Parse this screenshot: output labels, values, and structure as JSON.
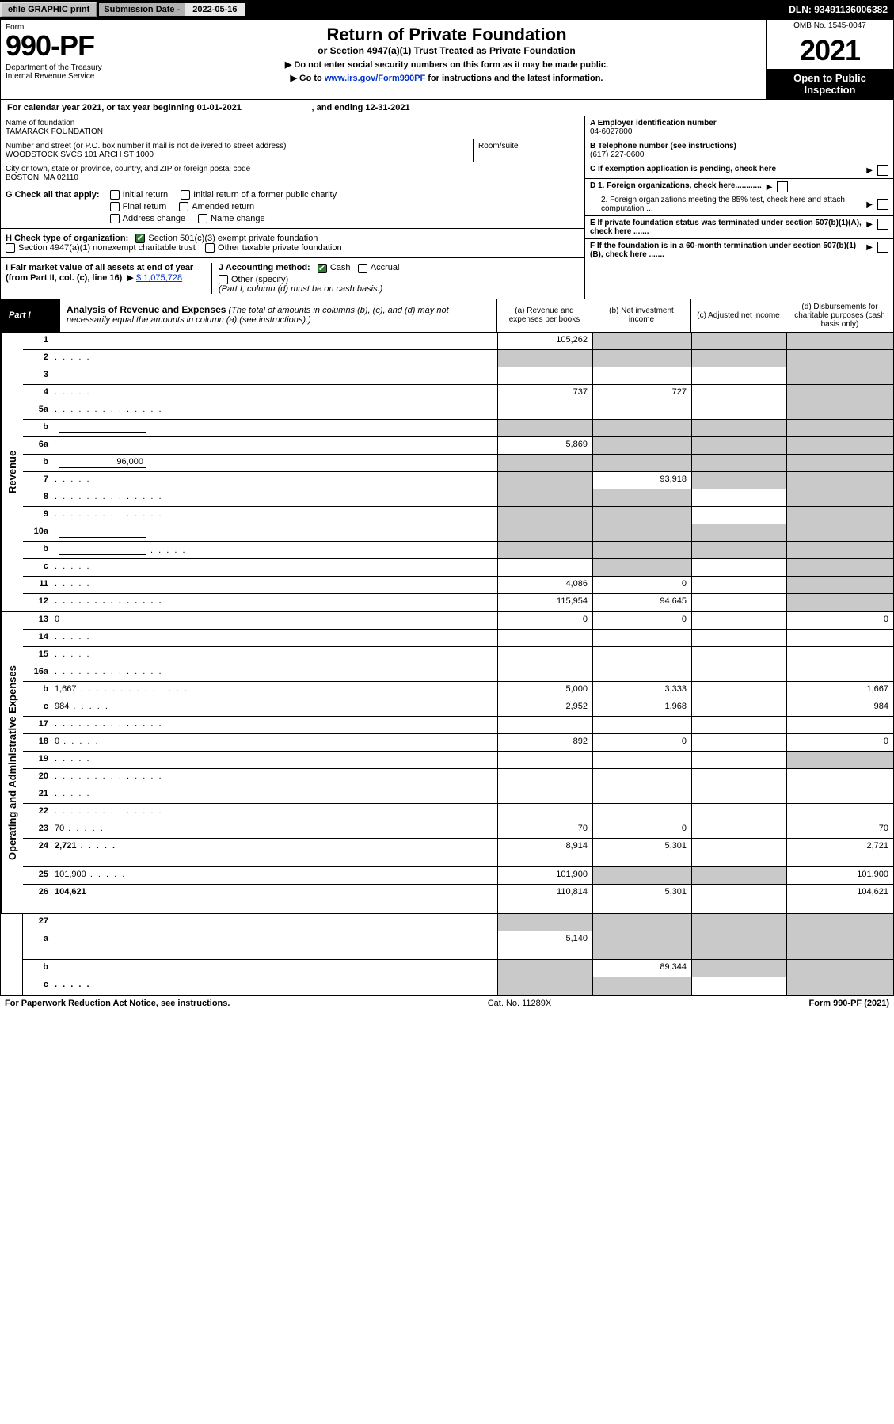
{
  "topbar": {
    "efile_btn": "efile GRAPHIC print",
    "sub_label": "Submission Date - ",
    "sub_date": "2022-05-16",
    "dln": "DLN: 93491136006382"
  },
  "header": {
    "form_word": "Form",
    "form_number": "990-PF",
    "dept": "Department of the Treasury\nInternal Revenue Service",
    "title": "Return of Private Foundation",
    "subtitle": "or Section 4947(a)(1) Trust Treated as Private Foundation",
    "instr1": "▶ Do not enter social security numbers on this form as it may be made public.",
    "instr2_pre": "▶ Go to ",
    "instr2_link": "www.irs.gov/Form990PF",
    "instr2_post": " for instructions and the latest information.",
    "omb": "OMB No. 1545-0047",
    "year": "2021",
    "open": "Open to Public Inspection"
  },
  "cal_year_line": "For calendar year 2021, or tax year beginning 01-01-2021                             , and ending 12-31-2021",
  "foundation": {
    "name_label": "Name of foundation",
    "name": "TAMARACK FOUNDATION",
    "addr_label": "Number and street (or P.O. box number if mail is not delivered to street address)",
    "addr": "WOODSTOCK SVCS 101 ARCH ST 1000",
    "room_label": "Room/suite",
    "city_label": "City or town, state or province, country, and ZIP or foreign postal code",
    "city": "BOSTON, MA  02110",
    "ein_label": "A Employer identification number",
    "ein": "04-6027800",
    "phone_label": "B Telephone number (see instructions)",
    "phone": "(617) 227-0600",
    "c_label": "C If exemption application is pending, check here",
    "d1": "D 1. Foreign organizations, check here............",
    "d2": "2. Foreign organizations meeting the 85% test, check here and attach computation ...",
    "e_label": "E  If private foundation status was terminated under section 507(b)(1)(A), check here .......",
    "f_label": "F  If the foundation is in a 60-month termination under section 507(b)(1)(B), check here .......",
    "g_label": "G Check all that apply:",
    "g_opts": {
      "initial": "Initial return",
      "initial_former": "Initial return of a former public charity",
      "final": "Final return",
      "amended": "Amended return",
      "addr_change": "Address change",
      "name_change": "Name change"
    },
    "h_label": "H Check type of organization:",
    "h_501c3": "Section 501(c)(3) exempt private foundation",
    "h_4947": "Section 4947(a)(1) nonexempt charitable trust",
    "h_other": "Other taxable private foundation",
    "i_label": "I Fair market value of all assets at end of year (from Part II, col. (c), line 16)",
    "i_value": "$  1,075,728",
    "j_label": "J Accounting method:",
    "j_cash": "Cash",
    "j_accrual": "Accrual",
    "j_other": "Other (specify)",
    "j_note": "(Part I, column (d) must be on cash basis.)"
  },
  "part1": {
    "label": "Part I",
    "title": "Analysis of Revenue and Expenses",
    "title_note": "(The total of amounts in columns (b), (c), and (d) may not necessarily equal the amounts in column (a) (see instructions).)",
    "col_a": "(a)   Revenue and expenses per books",
    "col_b": "(b)   Net investment income",
    "col_c": "(c)   Adjusted net income",
    "col_d": "(d)  Disbursements for charitable purposes (cash basis only)"
  },
  "sections": {
    "revenue": "Revenue",
    "expenses": "Operating and Administrative Expenses"
  },
  "rows": {
    "r1": {
      "n": "1",
      "d": "",
      "a": "105,262",
      "b": "",
      "c": "",
      "shade": [
        "b",
        "c",
        "d"
      ]
    },
    "r2": {
      "n": "2",
      "d": "",
      "a": "",
      "b": "",
      "c": "",
      "shade": [
        "a",
        "b",
        "c",
        "d"
      ],
      "dotsShort": true
    },
    "r3": {
      "n": "3",
      "d": "",
      "a": "",
      "b": "",
      "c": "",
      "shade": [
        "d"
      ]
    },
    "r4": {
      "n": "4",
      "d": "",
      "a": "737",
      "b": "727",
      "c": "",
      "shade": [
        "d"
      ],
      "dotsShort": true
    },
    "r5a": {
      "n": "5a",
      "d": "",
      "a": "",
      "b": "",
      "c": "",
      "shade": [
        "d"
      ],
      "dots": true
    },
    "r5b": {
      "n": "b",
      "d": "",
      "a": "",
      "b": "",
      "c": "",
      "shade": [
        "a",
        "b",
        "c",
        "d"
      ],
      "inline_box": true
    },
    "r6a": {
      "n": "6a",
      "d": "",
      "a": "5,869",
      "b": "",
      "c": "",
      "shade": [
        "b",
        "c",
        "d"
      ]
    },
    "r6b": {
      "n": "b",
      "d": "",
      "a": "",
      "b": "",
      "c": "",
      "shade": [
        "a",
        "b",
        "c",
        "d"
      ],
      "inline_val": "96,000"
    },
    "r7": {
      "n": "7",
      "d": "",
      "a": "",
      "b": "93,918",
      "c": "",
      "shade": [
        "a",
        "c",
        "d"
      ],
      "dotsShort": true
    },
    "r8": {
      "n": "8",
      "d": "",
      "a": "",
      "b": "",
      "c": "",
      "shade": [
        "a",
        "b",
        "d"
      ],
      "dots": true
    },
    "r9": {
      "n": "9",
      "d": "",
      "a": "",
      "b": "",
      "c": "",
      "shade": [
        "a",
        "b",
        "d"
      ],
      "dots": true
    },
    "r10a": {
      "n": "10a",
      "d": "",
      "a": "",
      "b": "",
      "c": "",
      "shade": [
        "a",
        "b",
        "c",
        "d"
      ],
      "inline_box": true
    },
    "r10b": {
      "n": "b",
      "d": "",
      "a": "",
      "b": "",
      "c": "",
      "shade": [
        "a",
        "b",
        "c",
        "d"
      ],
      "inline_box": true,
      "dotsShort": true
    },
    "r10c": {
      "n": "c",
      "d": "",
      "a": "",
      "b": "",
      "c": "",
      "shade": [
        "b",
        "d"
      ],
      "dotsShort": true
    },
    "r11": {
      "n": "11",
      "d": "",
      "a": "4,086",
      "b": "0",
      "c": "",
      "shade": [
        "d"
      ],
      "dotsShort": true
    },
    "r12": {
      "n": "12",
      "d": "",
      "a": "115,954",
      "b": "94,645",
      "c": "",
      "shade": [
        "d"
      ],
      "bold": true,
      "dots": true
    },
    "r13": {
      "n": "13",
      "d": "0",
      "a": "0",
      "b": "0",
      "c": ""
    },
    "r14": {
      "n": "14",
      "d": "",
      "a": "",
      "b": "",
      "c": "",
      "dotsShort": true
    },
    "r15": {
      "n": "15",
      "d": "",
      "a": "",
      "b": "",
      "c": "",
      "dotsShort": true
    },
    "r16a": {
      "n": "16a",
      "d": "",
      "a": "",
      "b": "",
      "c": "",
      "dots": true
    },
    "r16b": {
      "n": "b",
      "d": "1,667",
      "a": "5,000",
      "b": "3,333",
      "c": "",
      "dots": true
    },
    "r16c": {
      "n": "c",
      "d": "984",
      "a": "2,952",
      "b": "1,968",
      "c": "",
      "dotsShort": true
    },
    "r17": {
      "n": "17",
      "d": "",
      "a": "",
      "b": "",
      "c": "",
      "dots": true
    },
    "r18": {
      "n": "18",
      "d": "0",
      "a": "892",
      "b": "0",
      "c": "",
      "dotsShort": true
    },
    "r19": {
      "n": "19",
      "d": "",
      "a": "",
      "b": "",
      "c": "",
      "shade": [
        "d"
      ],
      "dotsShort": true
    },
    "r20": {
      "n": "20",
      "d": "",
      "a": "",
      "b": "",
      "c": "",
      "dots": true
    },
    "r21": {
      "n": "21",
      "d": "",
      "a": "",
      "b": "",
      "c": "",
      "dotsShort": true
    },
    "r22": {
      "n": "22",
      "d": "",
      "a": "",
      "b": "",
      "c": "",
      "dots": true
    },
    "r23": {
      "n": "23",
      "d": "70",
      "a": "70",
      "b": "0",
      "c": "",
      "dotsShort": true
    },
    "r24": {
      "n": "24",
      "d": "2,721",
      "a": "8,914",
      "b": "5,301",
      "c": "",
      "bold": true,
      "twoLine": true,
      "dotsShort": true
    },
    "r25": {
      "n": "25",
      "d": "101,900",
      "a": "101,900",
      "b": "",
      "c": "",
      "shade": [
        "b",
        "c"
      ],
      "dotsShort": true
    },
    "r26": {
      "n": "26",
      "d": "104,621",
      "a": "110,814",
      "b": "5,301",
      "c": "",
      "bold": true,
      "twoLine": true
    },
    "r27": {
      "n": "27",
      "d": "",
      "a": "",
      "b": "",
      "c": "",
      "shade": [
        "a",
        "b",
        "c",
        "d"
      ]
    },
    "r27a": {
      "n": "a",
      "d": "",
      "a": "5,140",
      "b": "",
      "c": "",
      "shade": [
        "b",
        "c",
        "d"
      ],
      "bold": true,
      "twoLine": true
    },
    "r27b": {
      "n": "b",
      "d": "",
      "a": "",
      "b": "89,344",
      "c": "",
      "shade": [
        "a",
        "c",
        "d"
      ],
      "bold": true
    },
    "r27c": {
      "n": "c",
      "d": "",
      "a": "",
      "b": "",
      "c": "",
      "shade": [
        "a",
        "b",
        "d"
      ],
      "bold": true,
      "dotsShort": true
    }
  },
  "footer": {
    "left": "For Paperwork Reduction Act Notice, see instructions.",
    "center": "Cat. No. 11289X",
    "right": "Form 990-PF (2021)"
  },
  "colors": {
    "shade": "#c9c9c9",
    "link": "#0033cc",
    "check_green": "#2e7d32"
  }
}
